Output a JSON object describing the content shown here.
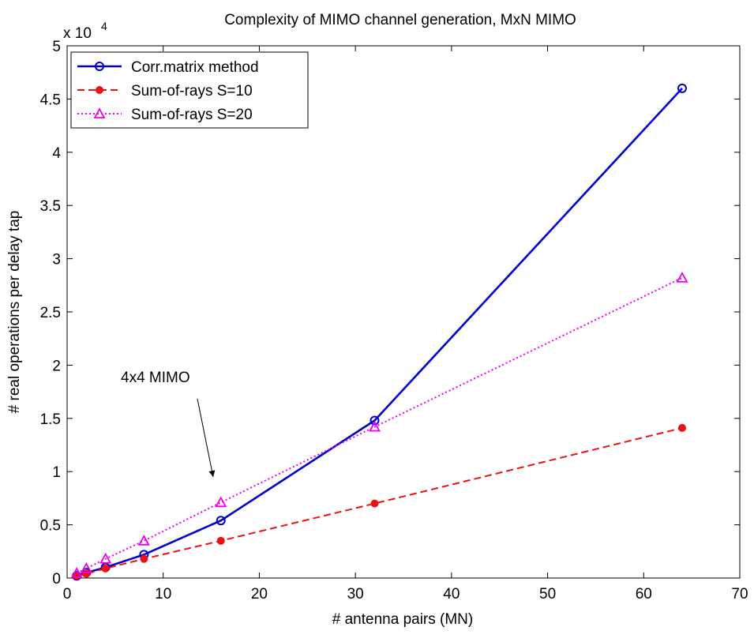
{
  "chart_data": {
    "type": "line",
    "title": "Complexity of MIMO channel generation, MxN MIMO",
    "x_label": "# antenna pairs (MN)",
    "y_label": "# real operations per delay tap",
    "y_scale_label": "x 10",
    "y_scale_exponent": "4",
    "annotation": "4x4 MIMO",
    "x": [
      1,
      2,
      4,
      8,
      16,
      32,
      64
    ],
    "series": [
      {
        "name": "Corr.matrix method",
        "color": "#0000cc",
        "dash": "solid",
        "marker": "circle",
        "values": [
          0.02,
          0.05,
          0.1,
          0.22,
          0.54,
          1.48,
          4.6
        ]
      },
      {
        "name": "Sum-of-rays S=10",
        "color": "#ee1111",
        "dash": "dashed",
        "marker": "dot",
        "values": [
          0.02,
          0.04,
          0.09,
          0.18,
          0.35,
          0.7,
          1.41
        ]
      },
      {
        "name": "Sum-of-rays S=20",
        "color": "#ee00ee",
        "dash": "dotted",
        "marker": "triangle",
        "values": [
          0.045,
          0.09,
          0.18,
          0.35,
          0.71,
          1.42,
          2.82
        ]
      }
    ],
    "xlim": [
      0,
      70
    ],
    "xticks": [
      0,
      10,
      20,
      30,
      40,
      50,
      60,
      70
    ],
    "ylim": [
      0,
      5
    ],
    "yticks": [
      0,
      0.5,
      1,
      1.5,
      2,
      2.5,
      3,
      3.5,
      4,
      4.5,
      5
    ],
    "grid": false,
    "legend": "upper-left"
  }
}
